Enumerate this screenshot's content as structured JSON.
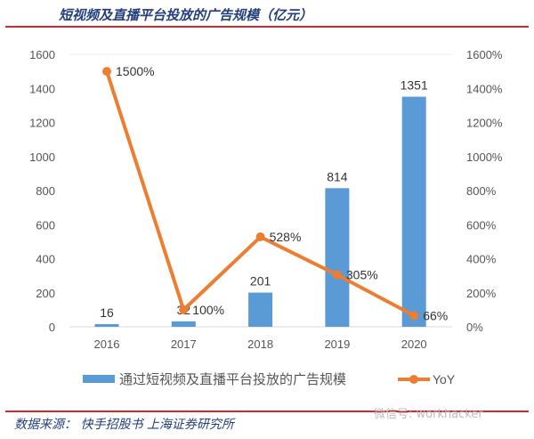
{
  "title": "短视频及直播平台投放的广告规模（亿元）",
  "footer": {
    "source": "数据来源：  快手招股书   上海证券研究所",
    "watermark": "微信号: workhacker"
  },
  "colors": {
    "bar": "#5b9bd5",
    "line": "#ed7d31",
    "title": "#233f7f",
    "rule": "#d2282e"
  },
  "chart_data": {
    "type": "bar+line",
    "categories": [
      "2016",
      "2017",
      "2018",
      "2019",
      "2020"
    ],
    "series": [
      {
        "name": "通过短视频及直播平台投放的广告规模",
        "type": "bar",
        "axis": "left",
        "values": [
          16,
          32,
          201,
          814,
          1351
        ],
        "labels": [
          "16",
          "32",
          "201",
          "814",
          "1351"
        ]
      },
      {
        "name": "YoY",
        "type": "line",
        "axis": "right",
        "values": [
          1500,
          100,
          528,
          305,
          66
        ],
        "labels": [
          "1500%",
          "100%",
          "528%",
          "305%",
          "66%"
        ]
      }
    ],
    "ylim": [
      0,
      1600
    ],
    "yticks": [
      "0",
      "200",
      "400",
      "600",
      "800",
      "1000",
      "1200",
      "1400",
      "1600"
    ],
    "y2lim": [
      0,
      1600
    ],
    "y2ticks": [
      "0%",
      "200%",
      "400%",
      "600%",
      "800%",
      "1000%",
      "1200%",
      "1400%",
      "1600%"
    ],
    "legend": "bottom",
    "grid": false
  }
}
